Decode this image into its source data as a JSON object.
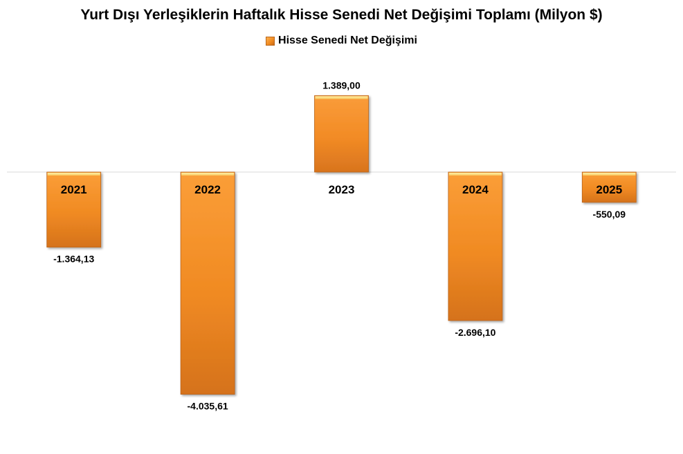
{
  "chart_data": {
    "type": "bar",
    "title": "Yurt Dışı Yerleşiklerin Haftalık Hisse Senedi Net Değişimi Toplamı (Milyon $)",
    "legend": {
      "position": "top",
      "entries": [
        "Hisse Senedi Net Değişimi"
      ]
    },
    "categories": [
      "2021",
      "2022",
      "2023",
      "2024",
      "2025"
    ],
    "series": [
      {
        "name": "Hisse Senedi Net Değişimi",
        "values": [
          -1364.13,
          -4035.61,
          1389.0,
          -2696.1,
          -550.09
        ],
        "labels": [
          "-1.364,13",
          "-4.035,61",
          "1.389,00",
          "-2.696,10",
          "-550,09"
        ],
        "color": "#f5922a"
      }
    ],
    "ylim": [
      -4200,
      2000
    ],
    "grid": false,
    "xlabel": "",
    "ylabel": ""
  }
}
